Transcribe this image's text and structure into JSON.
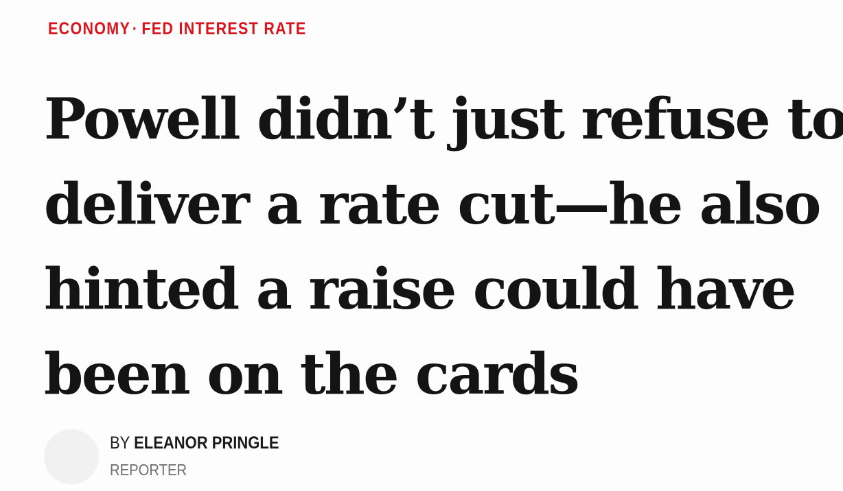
{
  "breadcrumb": {
    "section": "ECONOMY",
    "separator": "·",
    "topic": "FED INTEREST RATE"
  },
  "headline": {
    "lines": [
      "Powell didn’t just refuse to",
      "deliver a rate cut—he also",
      "hinted a raise could have",
      "been on the cards"
    ]
  },
  "byline": {
    "prefix": "BY",
    "author": "ELEANOR PRINGLE",
    "role": "REPORTER"
  }
}
